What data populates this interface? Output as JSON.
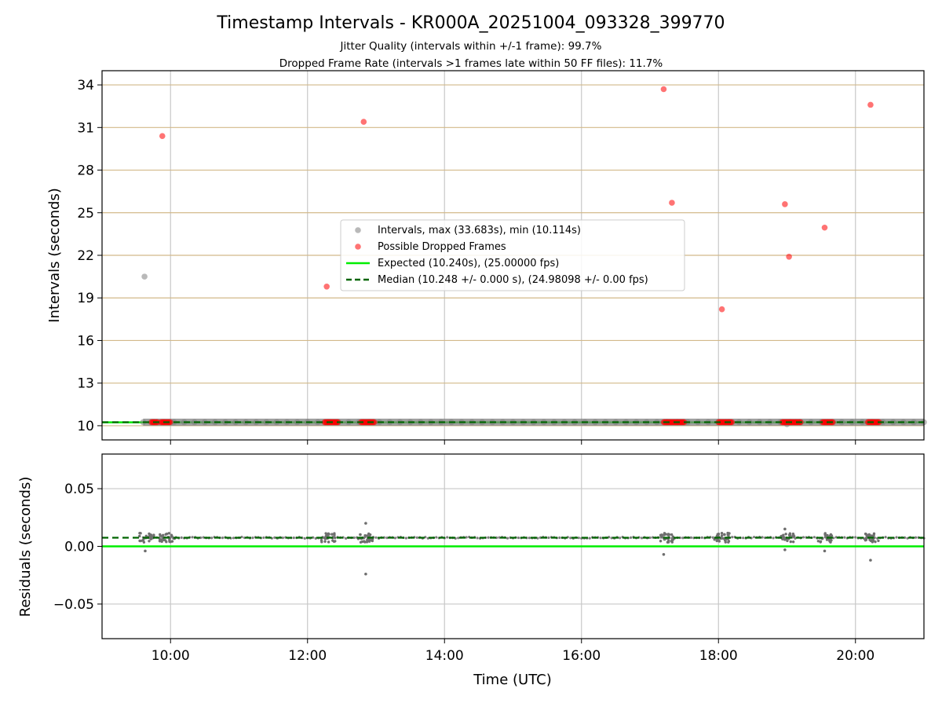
{
  "chart_data": {
    "title": "Timestamp Intervals - KR000A_20251004_093328_399770",
    "subtitle_lines": [
      "Jitter Quality (intervals within +/-1 frame): 99.7%",
      "Dropped Frame Rate (intervals >1 frames late within 50 FF files): 11.7%"
    ],
    "xlabel": "Time (UTC)",
    "x_unit": "hours (UTC)",
    "xlim": [
      9.0,
      21.0
    ],
    "xtick_values": [
      10,
      12,
      14,
      16,
      18,
      20
    ],
    "xtick_labels": [
      "10:00",
      "12:00",
      "14:00",
      "16:00",
      "18:00",
      "20:00"
    ],
    "panels": [
      {
        "type": "scatter",
        "ylabel": "Intervals (seconds)",
        "ylim": [
          9.0,
          35.0
        ],
        "ytick_values": [
          10,
          13,
          16,
          19,
          22,
          25,
          28,
          31,
          34
        ],
        "ytick_labels": [
          "10",
          "13",
          "16",
          "19",
          "22",
          "25",
          "28",
          "31",
          "34"
        ],
        "grid": "on",
        "legend_position": "center",
        "legend": [
          "Intervals, max (33.683s), min (10.114s)",
          "Possible Dropped Frames",
          "Expected (10.240s), (25.00000 fps)",
          "Median (10.248 +/- 0.000 s), (24.98098 +/- 0.00 fps)"
        ],
        "series": [
          {
            "name": "Intervals",
            "color": "#808080",
            "baseline_range": [
              9.6,
              21.0
            ],
            "baseline_value": 10.25,
            "points": [
              {
                "x": 9.62,
                "y": 20.5
              },
              {
                "x": 19.0,
                "y": 10.11
              }
            ]
          },
          {
            "name": "Possible Dropped Frames",
            "color": "#ff0000",
            "points": [
              {
                "x": 9.88,
                "y": 30.4
              },
              {
                "x": 12.28,
                "y": 19.8
              },
              {
                "x": 12.82,
                "y": 31.4
              },
              {
                "x": 17.2,
                "y": 33.7
              },
              {
                "x": 17.32,
                "y": 25.7
              },
              {
                "x": 18.05,
                "y": 18.2
              },
              {
                "x": 18.97,
                "y": 25.6
              },
              {
                "x": 19.03,
                "y": 21.9
              },
              {
                "x": 19.55,
                "y": 23.95
              },
              {
                "x": 20.22,
                "y": 32.6
              }
            ],
            "clusters_near_baseline": [
              [
                9.72,
                9.82
              ],
              [
                9.86,
                10.0
              ],
              [
                12.25,
                12.45
              ],
              [
                12.78,
                12.98
              ],
              [
                17.2,
                17.5
              ],
              [
                18.0,
                18.2
              ],
              [
                18.93,
                19.2
              ],
              [
                19.52,
                19.68
              ],
              [
                20.18,
                20.35
              ]
            ]
          }
        ],
        "lines": [
          {
            "name": "Expected",
            "y": 10.24,
            "color": "#00ee00",
            "style": "solid"
          },
          {
            "name": "Median",
            "y": 10.248,
            "color": "#006400",
            "style": "dashed"
          }
        ]
      },
      {
        "type": "scatter",
        "ylabel": "Residuals (seconds)",
        "ylim": [
          -0.08,
          0.08
        ],
        "ytick_values": [
          0.05,
          0.0,
          -0.05
        ],
        "ytick_labels": [
          "0.05",
          "0.00",
          "−0.05"
        ],
        "grid": "on",
        "baseline_residual": 0.0075,
        "baseline_range": [
          9.6,
          21.0
        ],
        "clusters": [
          9.65,
          9.95,
          12.3,
          12.85,
          17.25,
          18.05,
          19.0,
          19.55,
          20.25
        ],
        "outliers": [
          {
            "x": 9.63,
            "y": -0.004
          },
          {
            "x": 12.85,
            "y": 0.02
          },
          {
            "x": 12.85,
            "y": -0.024
          },
          {
            "x": 17.2,
            "y": -0.007
          },
          {
            "x": 18.97,
            "y": 0.015
          },
          {
            "x": 18.97,
            "y": -0.003
          },
          {
            "x": 19.55,
            "y": -0.004
          },
          {
            "x": 20.22,
            "y": -0.012
          }
        ],
        "lines": [
          {
            "name": "Expected",
            "y": 0.0,
            "color": "#00ee00",
            "style": "solid"
          },
          {
            "name": "Median",
            "y": 0.0075,
            "color": "#006400",
            "style": "dashed"
          }
        ]
      }
    ]
  }
}
